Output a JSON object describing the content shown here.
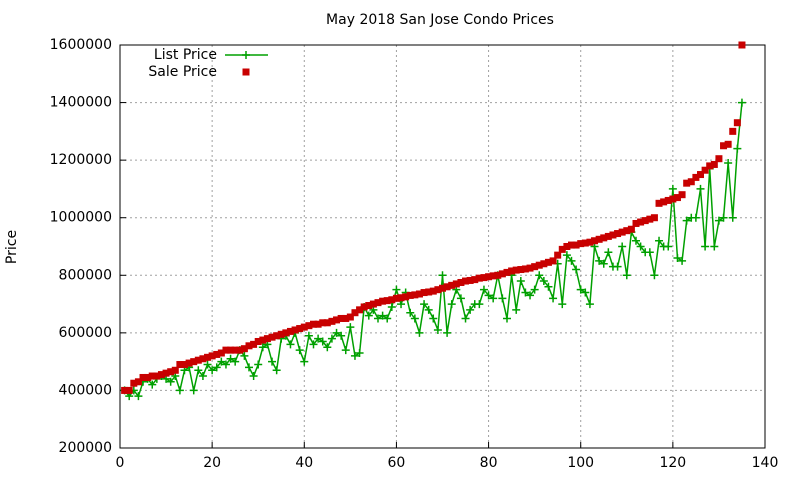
{
  "chart_data": {
    "type": "line",
    "title": "May 2018 San Jose Condo Prices",
    "ylabel": "Price",
    "x": [
      1,
      2,
      3,
      4,
      5,
      6,
      7,
      8,
      9,
      10,
      11,
      12,
      13,
      14,
      15,
      16,
      17,
      18,
      19,
      20,
      21,
      22,
      23,
      24,
      25,
      26,
      27,
      28,
      29,
      30,
      31,
      32,
      33,
      34,
      35,
      36,
      37,
      38,
      39,
      40,
      41,
      42,
      43,
      44,
      45,
      46,
      47,
      48,
      49,
      50,
      51,
      52,
      53,
      54,
      55,
      56,
      57,
      58,
      59,
      60,
      61,
      62,
      63,
      64,
      65,
      66,
      67,
      68,
      69,
      70,
      71,
      72,
      73,
      74,
      75,
      76,
      77,
      78,
      79,
      80,
      81,
      82,
      83,
      84,
      85,
      86,
      87,
      88,
      89,
      90,
      91,
      92,
      93,
      94,
      95,
      96,
      97,
      98,
      99,
      100,
      101,
      102,
      103,
      104,
      105,
      106,
      107,
      108,
      109,
      110,
      111,
      112,
      113,
      114,
      115,
      116,
      117,
      118,
      119,
      120,
      121,
      122,
      123,
      124,
      125,
      126,
      127,
      128,
      129,
      130,
      131,
      132,
      133,
      134,
      135
    ],
    "series": [
      {
        "name": "List Price",
        "color": "#00a000",
        "style": "linespoints",
        "values": [
          400000,
          380000,
          400000,
          380000,
          430000,
          440000,
          420000,
          440000,
          450000,
          440000,
          430000,
          450000,
          400000,
          470000,
          480000,
          400000,
          470000,
          450000,
          490000,
          470000,
          480000,
          500000,
          490000,
          510000,
          500000,
          540000,
          520000,
          480000,
          450000,
          490000,
          550000,
          560000,
          500000,
          470000,
          580000,
          590000,
          560000,
          600000,
          540000,
          500000,
          590000,
          560000,
          580000,
          570000,
          550000,
          580000,
          600000,
          590000,
          540000,
          620000,
          520000,
          530000,
          690000,
          660000,
          680000,
          650000,
          660000,
          650000,
          690000,
          750000,
          700000,
          740000,
          670000,
          650000,
          600000,
          700000,
          680000,
          650000,
          610000,
          800000,
          600000,
          700000,
          750000,
          720000,
          650000,
          680000,
          700000,
          700000,
          750000,
          730000,
          720000,
          800000,
          720000,
          650000,
          800000,
          680000,
          780000,
          740000,
          730000,
          750000,
          800000,
          780000,
          760000,
          720000,
          840000,
          700000,
          870000,
          850000,
          820000,
          750000,
          740000,
          700000,
          900000,
          850000,
          840000,
          880000,
          830000,
          830000,
          900000,
          800000,
          950000,
          920000,
          900000,
          880000,
          880000,
          800000,
          920000,
          900000,
          900000,
          1100000,
          860000,
          850000,
          990000,
          1000000,
          1000000,
          1100000,
          900000,
          1170000,
          900000,
          990000,
          1000000,
          1190000,
          1000000,
          1240000,
          1400000
        ]
      },
      {
        "name": "Sale Price",
        "color": "#c80000",
        "style": "points",
        "values": [
          400000,
          400000,
          425000,
          430000,
          445000,
          445000,
          450000,
          450000,
          455000,
          460000,
          465000,
          470000,
          490000,
          490000,
          495000,
          500000,
          505000,
          510000,
          515000,
          520000,
          525000,
          530000,
          540000,
          540000,
          540000,
          540000,
          545000,
          555000,
          560000,
          570000,
          575000,
          580000,
          585000,
          590000,
          595000,
          600000,
          605000,
          610000,
          615000,
          620000,
          625000,
          630000,
          630000,
          635000,
          635000,
          640000,
          645000,
          650000,
          650000,
          655000,
          670000,
          680000,
          690000,
          695000,
          700000,
          705000,
          710000,
          712000,
          715000,
          720000,
          722000,
          725000,
          730000,
          732000,
          735000,
          740000,
          742000,
          745000,
          750000,
          755000,
          760000,
          765000,
          770000,
          775000,
          780000,
          782000,
          785000,
          790000,
          792000,
          795000,
          798000,
          800000,
          805000,
          810000,
          815000,
          818000,
          820000,
          822000,
          825000,
          830000,
          835000,
          840000,
          845000,
          850000,
          870000,
          890000,
          900000,
          905000,
          905000,
          910000,
          912000,
          915000,
          920000,
          925000,
          930000,
          935000,
          940000,
          945000,
          950000,
          955000,
          960000,
          980000,
          985000,
          990000,
          995000,
          1000000,
          1050000,
          1055000,
          1060000,
          1065000,
          1070000,
          1080000,
          1120000,
          1125000,
          1140000,
          1150000,
          1165000,
          1180000,
          1185000,
          1205000,
          1250000,
          1255000,
          1300000,
          1330000,
          1600000
        ]
      }
    ],
    "xlim": [
      0,
      140
    ],
    "xticks": [
      0,
      20,
      40,
      60,
      80,
      100,
      120,
      140
    ],
    "ylim": [
      200000,
      1600000
    ],
    "yticks": [
      200000,
      400000,
      600000,
      800000,
      1000000,
      1200000,
      1400000,
      1600000
    ],
    "grid": true,
    "legend": "top-left"
  }
}
